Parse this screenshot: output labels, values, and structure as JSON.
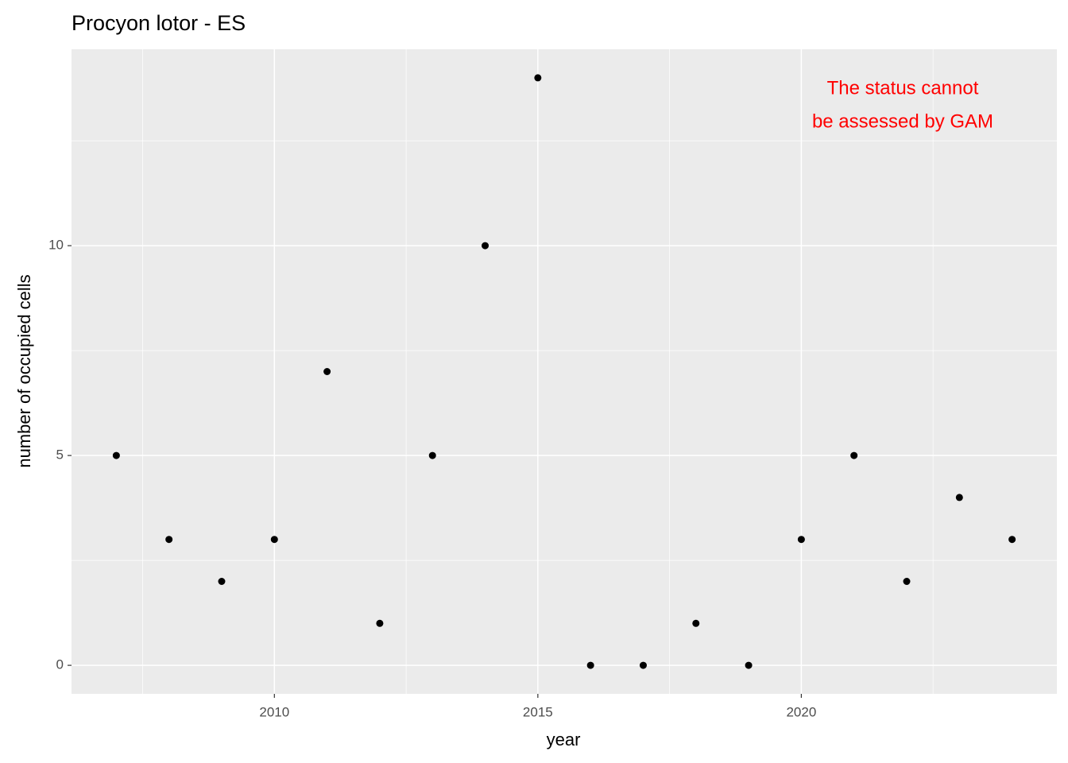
{
  "chart_data": {
    "type": "scatter",
    "title": "Procyon lotor - ES",
    "x_label": "year",
    "y_label": "number of occupied cells",
    "annotation": [
      "The status cannot",
      "be assessed by GAM"
    ],
    "annotation_color": "#ff0000",
    "x": [
      2007,
      2008,
      2009,
      2010,
      2011,
      2012,
      2013,
      2014,
      2015,
      2016,
      2017,
      2018,
      2019,
      2020,
      2021,
      2022,
      2023,
      2024
    ],
    "values": [
      5,
      3,
      2,
      3,
      7,
      1,
      5,
      10,
      14,
      0,
      0,
      1,
      0,
      3,
      5,
      2,
      4,
      3
    ],
    "color": "#000000",
    "xlim": [
      2006.15,
      2024.85
    ],
    "xticks": [
      2010,
      2015,
      2020
    ],
    "ylim": [
      -0.68,
      14.68
    ],
    "yticks": [
      0,
      5,
      10
    ],
    "grid": true,
    "minor_grid": true
  }
}
